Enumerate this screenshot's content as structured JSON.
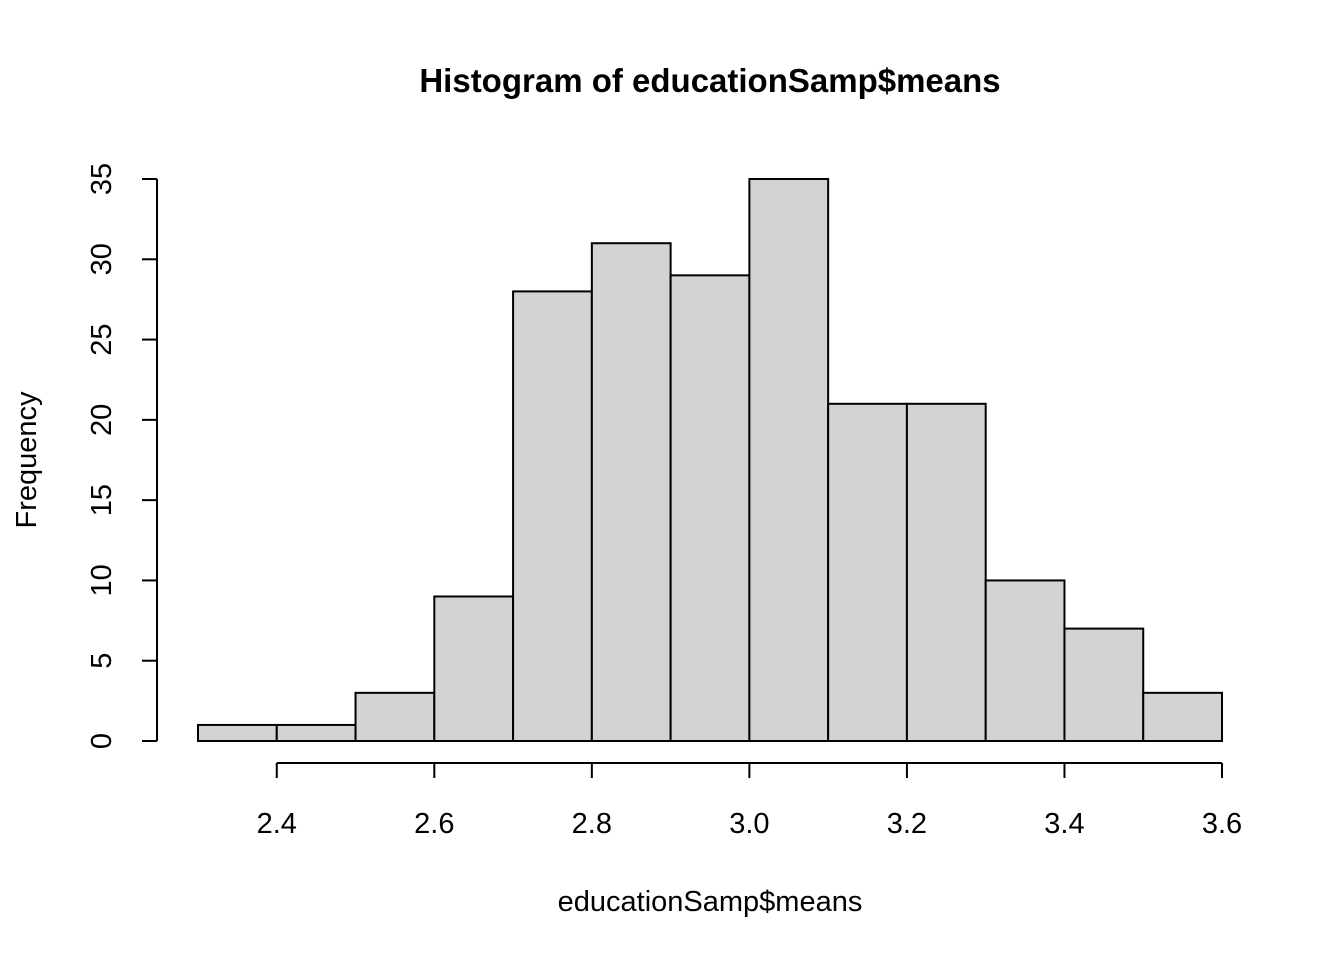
{
  "chart_data": {
    "type": "bar",
    "title": "Histogram of educationSamp$means",
    "xlabel": "educationSamp$means",
    "ylabel": "Frequency",
    "bins": [
      {
        "from": 2.3,
        "to": 2.4,
        "count": 1
      },
      {
        "from": 2.4,
        "to": 2.5,
        "count": 1
      },
      {
        "from": 2.5,
        "to": 2.6,
        "count": 3
      },
      {
        "from": 2.6,
        "to": 2.7,
        "count": 9
      },
      {
        "from": 2.7,
        "to": 2.8,
        "count": 28
      },
      {
        "from": 2.8,
        "to": 2.9,
        "count": 31
      },
      {
        "from": 2.9,
        "to": 3.0,
        "count": 29
      },
      {
        "from": 3.0,
        "to": 3.1,
        "count": 35
      },
      {
        "from": 3.1,
        "to": 3.2,
        "count": 21
      },
      {
        "from": 3.2,
        "to": 3.3,
        "count": 21
      },
      {
        "from": 3.3,
        "to": 3.4,
        "count": 10
      },
      {
        "from": 3.4,
        "to": 3.5,
        "count": 7
      },
      {
        "from": 3.5,
        "to": 3.6,
        "count": 3
      }
    ],
    "xticks": [
      "2.4",
      "2.6",
      "2.8",
      "3.0",
      "3.2",
      "3.4",
      "3.6"
    ],
    "yticks": [
      "0",
      "5",
      "10",
      "15",
      "20",
      "25",
      "30",
      "35"
    ],
    "xlim": [
      2.3,
      3.6
    ],
    "ylim": [
      0,
      35
    ],
    "bar_color": "#d3d3d3",
    "edge_color": "#000000",
    "grid": false,
    "legend": "none"
  }
}
